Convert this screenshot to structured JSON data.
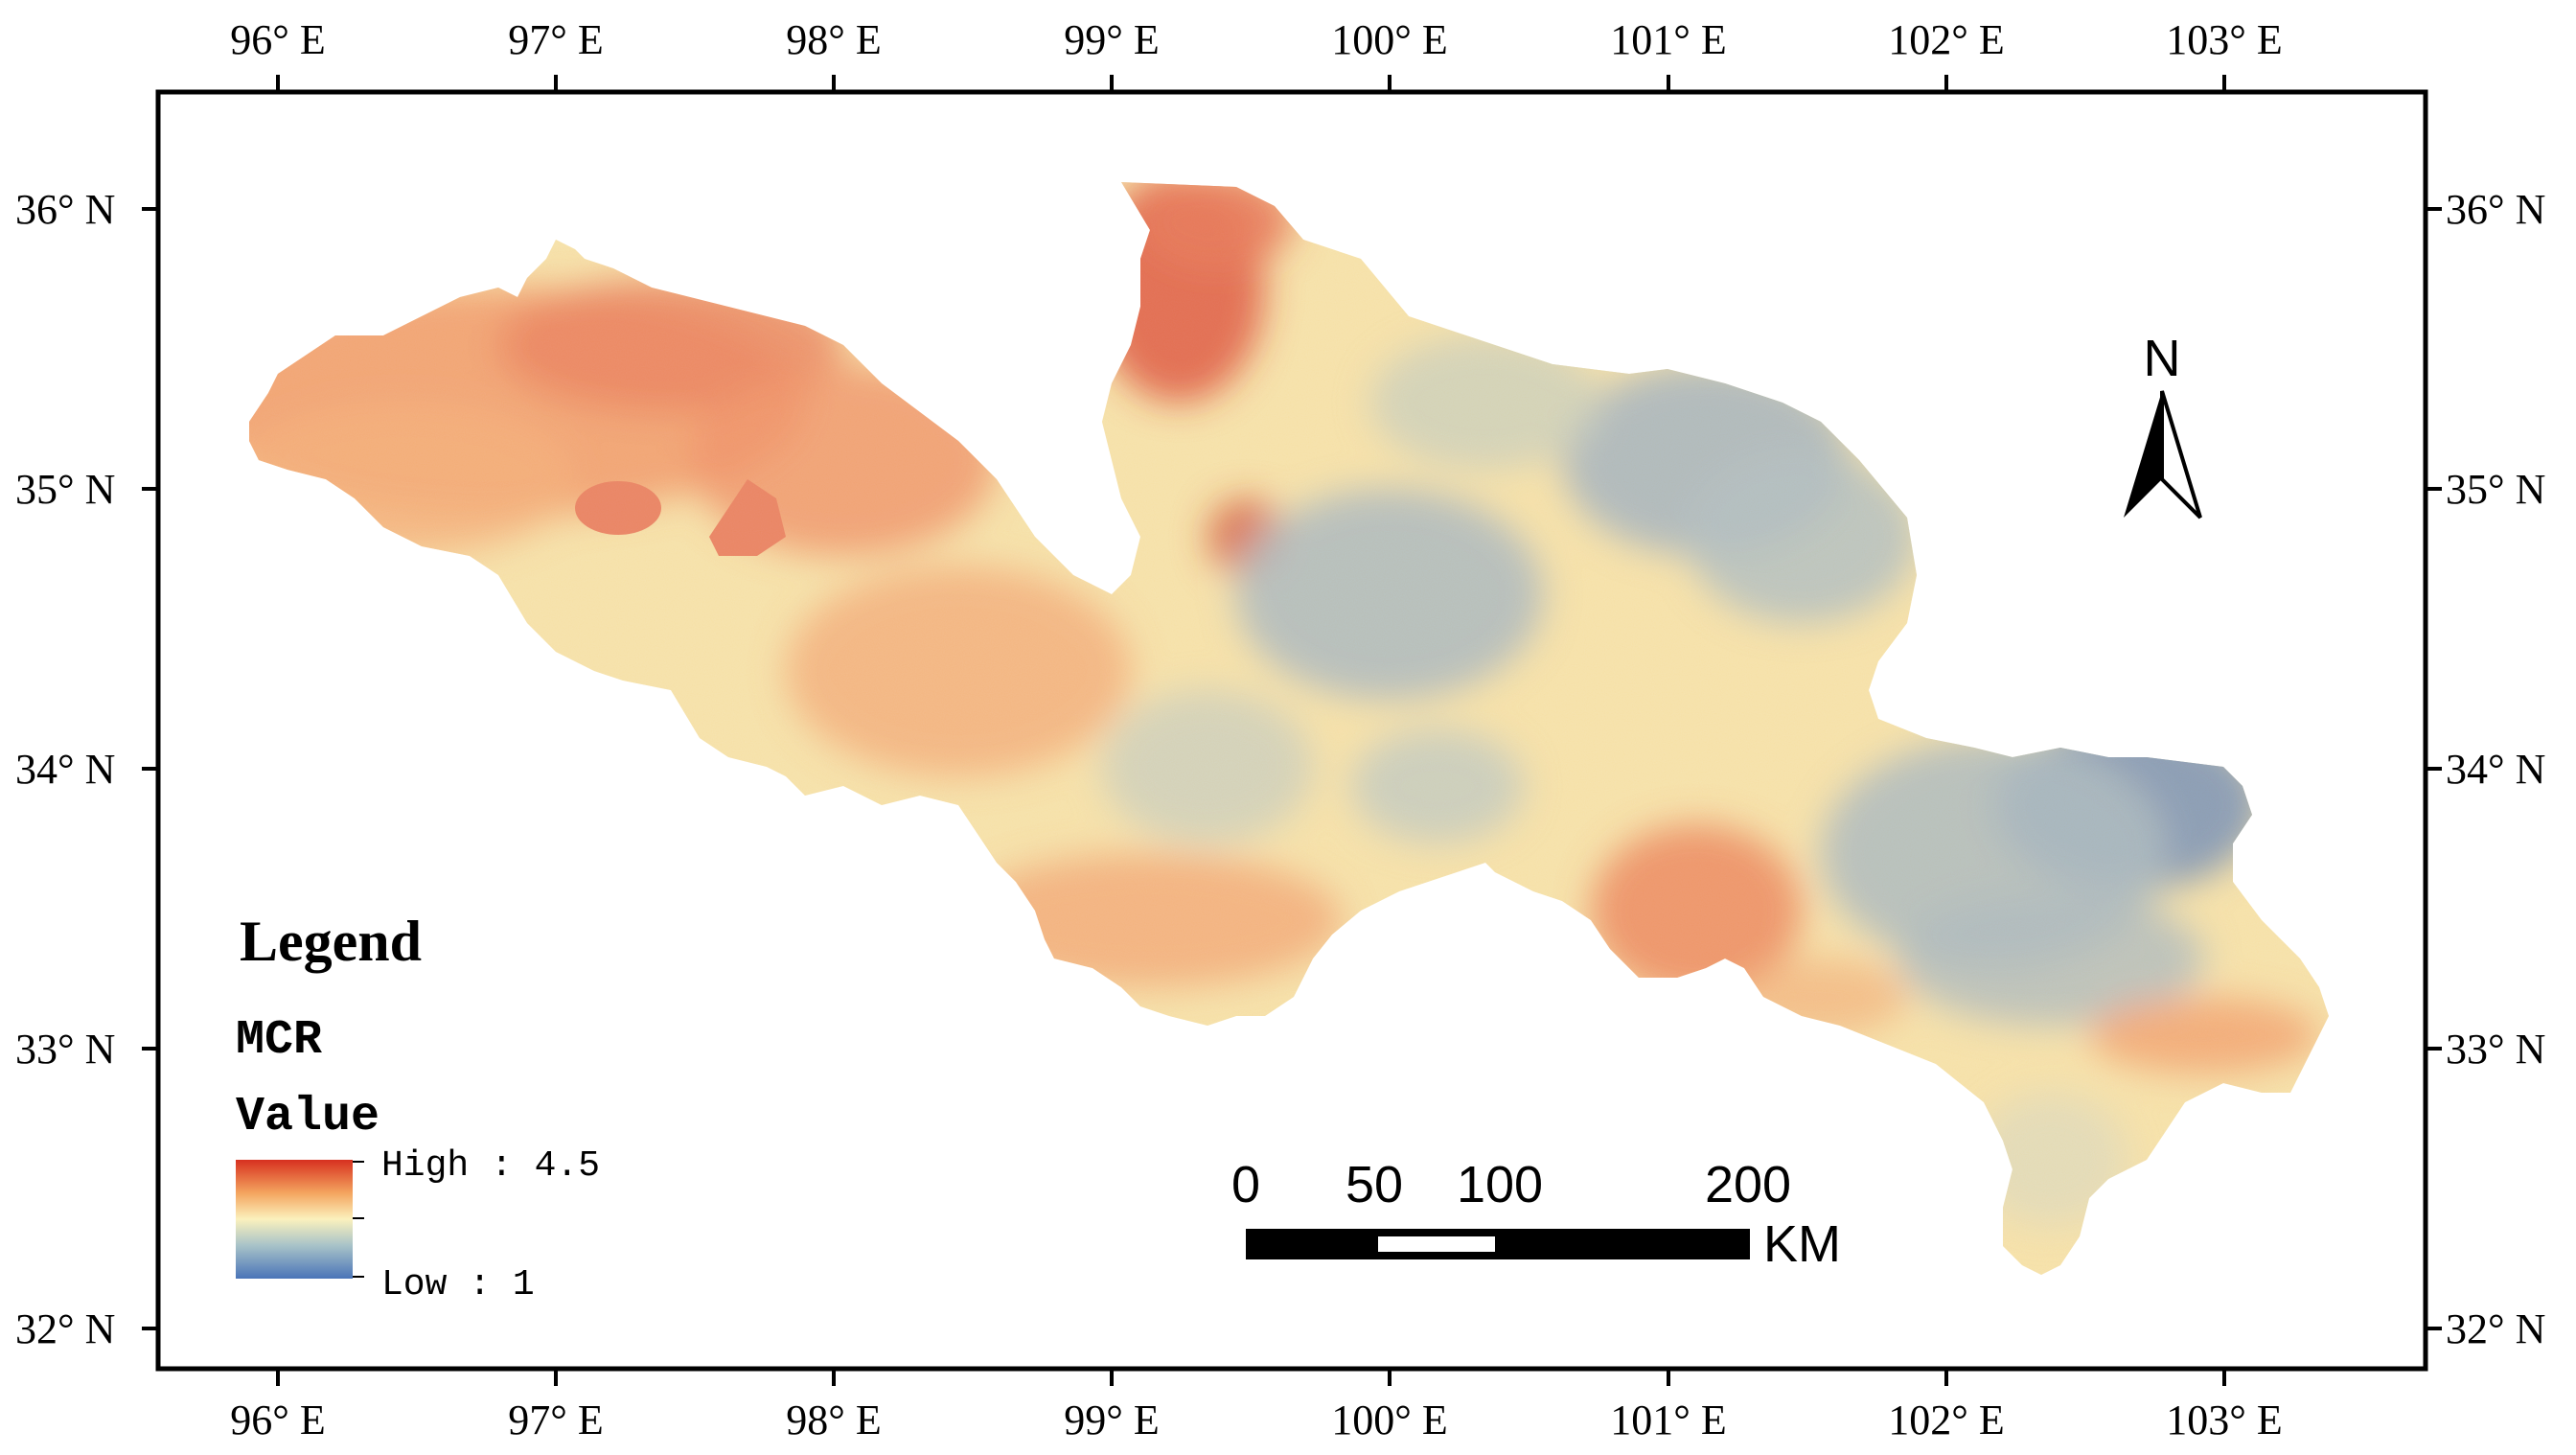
{
  "map": {
    "lon_labels": [
      "96° E",
      "97° E",
      "98° E",
      "99° E",
      "100° E",
      "101° E",
      "102° E",
      "103° E"
    ],
    "lat_labels": [
      "36° N",
      "35° N",
      "34° N",
      "33° N",
      "32° N"
    ]
  },
  "legend": {
    "title": "Legend",
    "layer": "MCR",
    "field": "Value",
    "high_label": "High : 4.5",
    "low_label": "Low : 1",
    "high_value": 4.5,
    "low_value": 1,
    "ramp_colors": [
      "#d7301f",
      "#f4a55f",
      "#fbf1bd",
      "#a8c3c8",
      "#4a74b8"
    ]
  },
  "scale_bar": {
    "ticks": [
      "0",
      "50",
      "100",
      "200"
    ],
    "unit": "KM"
  },
  "north_arrow": {
    "label": "N"
  }
}
